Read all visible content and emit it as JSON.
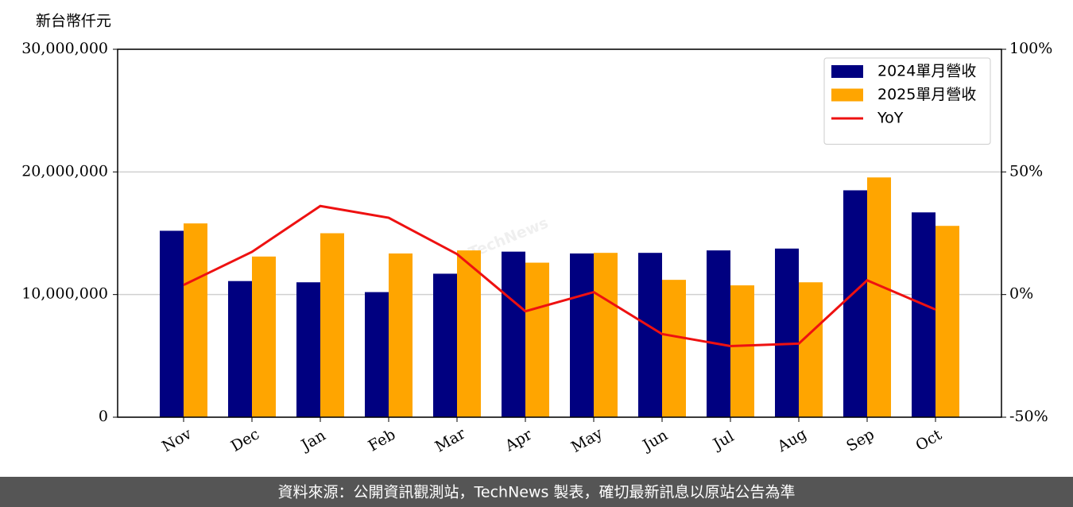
{
  "chart_data": {
    "type": "bar",
    "ylabel": "新台幣仟元",
    "watermark": "TechNews",
    "source": "資料來源：公開資訊觀測站，TechNews 製表，確切最新訊息以原站公告為準",
    "categories": [
      "Nov",
      "Dec",
      "Jan",
      "Feb",
      "Mar",
      "Apr",
      "May",
      "Jun",
      "Jul",
      "Aug",
      "Sep",
      "Oct"
    ],
    "series": [
      {
        "name": "2024單月營收",
        "type": "bar",
        "axis": "y",
        "color": "#000080",
        "values": [
          15200000,
          11100000,
          11000000,
          10200000,
          11700000,
          13500000,
          13350000,
          13400000,
          13600000,
          13750000,
          18500000,
          16700000
        ]
      },
      {
        "name": "2025單月營收",
        "type": "bar",
        "axis": "y",
        "color": "#ffa500",
        "values": [
          15800000,
          13100000,
          15000000,
          13350000,
          13600000,
          12600000,
          13400000,
          11200000,
          10750000,
          11000000,
          19550000,
          15600000
        ]
      },
      {
        "name": "YoY",
        "type": "line",
        "axis": "y2",
        "color": "#ee1111",
        "values": [
          3.9,
          17.4,
          36.1,
          31.3,
          16.5,
          -6.8,
          1.0,
          -16.1,
          -21.0,
          -20.0,
          5.8,
          -6.1
        ]
      }
    ],
    "ylim": [
      0,
      30000000
    ],
    "yticks": [
      0,
      {
        "value": 10000000,
        "label": "10,000,000"
      },
      {
        "value": 20000000,
        "label": "20,000,000"
      },
      {
        "value": 30000000,
        "label": "30,000,000"
      }
    ],
    "y2lim": [
      -50,
      100
    ],
    "y2ticks": [
      {
        "value": -50,
        "label": "-50%"
      },
      {
        "value": 0,
        "label": "0%"
      },
      {
        "value": 50,
        "label": "50%"
      },
      {
        "value": 100,
        "label": "100%"
      }
    ],
    "grid": true,
    "legend": "upper right"
  }
}
